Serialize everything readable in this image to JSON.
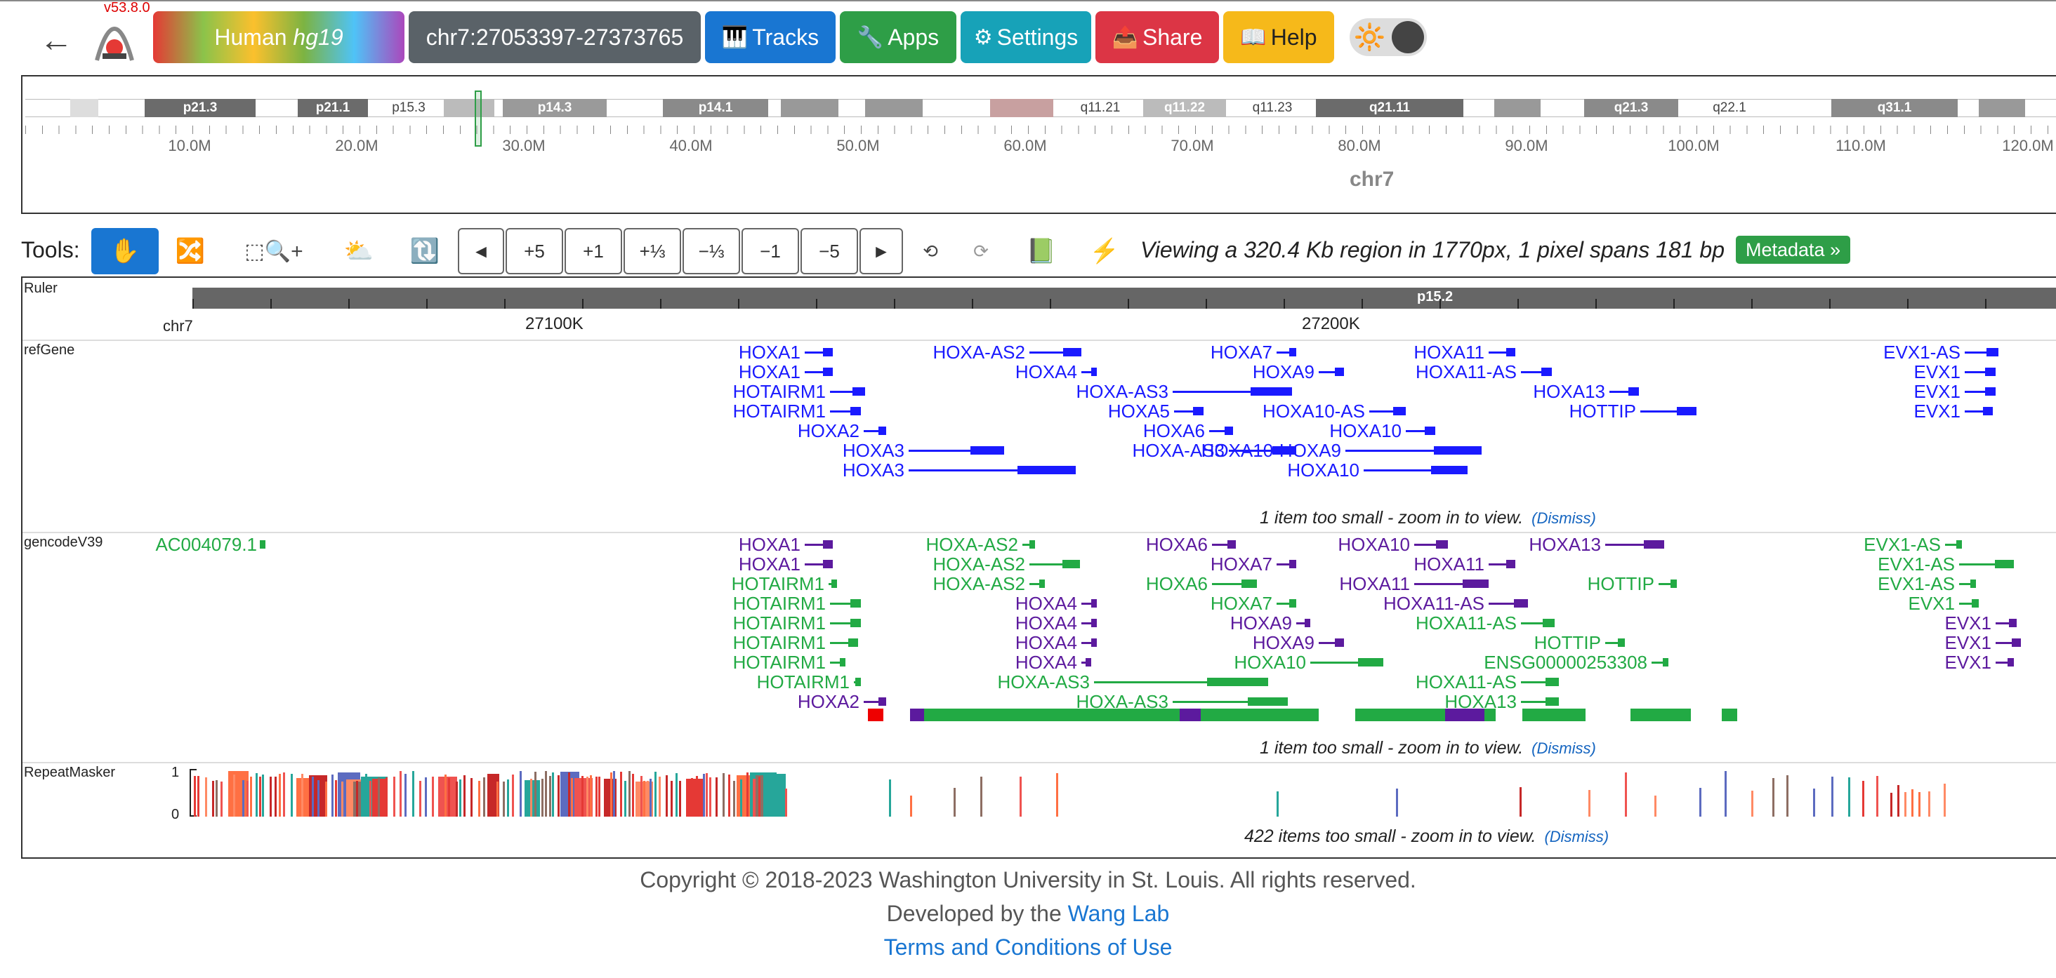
{
  "header": {
    "version": "v53.8.0",
    "genome_label": "Human",
    "genome_build": "hg19",
    "locus": "chr7:27053397-27373765",
    "buttons": {
      "tracks": "Tracks",
      "apps": "Apps",
      "settings": "Settings",
      "share": "Share",
      "help": "Help"
    }
  },
  "ideogram": {
    "chromosome": "chr7",
    "bands": [
      "p21.3",
      "p21.1",
      "p15.3",
      "p14.3",
      "p14.1",
      "q11.21",
      "q11.22",
      "q11.23",
      "q21.11",
      "q21.3",
      "q22.1",
      "q31.1"
    ],
    "ticks": [
      "10.0M",
      "20.0M",
      "30.0M",
      "40.0M",
      "50.0M",
      "60.0M",
      "70.0M",
      "80.0M",
      "90.0M",
      "100.0M",
      "110.0M",
      "120.0M"
    ]
  },
  "tools": {
    "label": "Tools:",
    "zoom_buttons": [
      "◄",
      "+5",
      "+1",
      "+⅓",
      "−⅓",
      "−1",
      "−5",
      "►"
    ],
    "status": "Viewing a 320.4 Kb region in 1770px, 1 pixel spans 181 bp",
    "metadata_button": "Metadata »"
  },
  "ruler": {
    "track_name": "Ruler",
    "chrom": "chr7",
    "labels": [
      "27100K",
      "27200K"
    ],
    "band": "p15.2"
  },
  "refGene": {
    "track_name": "refGene",
    "color": "#1a1aff",
    "genes": [
      "HOXA1",
      "HOXA1",
      "HOTAIRM1",
      "HOTAIRM1",
      "HOXA2",
      "HOXA3",
      "HOXA3",
      "HOXA-AS2",
      "HOXA4",
      "HOXA-AS3",
      "HOXA5",
      "HOXA6",
      "HOXA-AS3",
      "HOXA7",
      "HOXA9",
      "HOXA10-AS",
      "HOXA10",
      "HOXA10-HOXA9",
      "HOXA10",
      "HOXA11",
      "HOXA11-AS",
      "HOXA13",
      "HOTTIP",
      "EVX1-AS",
      "EVX1",
      "EVX1",
      "EVX1"
    ],
    "message": "1 item too small - zoom in to view.",
    "dismiss": "(Dismiss)"
  },
  "gencode": {
    "track_name": "gencodeV39",
    "coding_color": "#5c1a9e",
    "noncoding_color": "#22aa44",
    "genes": [
      "AC004079.1",
      "HOXA1",
      "HOXA1",
      "HOTAIRM1",
      "HOTAIRM1",
      "HOTAIRM1",
      "HOTAIRM1",
      "HOTAIRM1",
      "HOTAIRM1",
      "HOXA2",
      "HOXA-AS2",
      "HOXA-AS2",
      "HOXA-AS2",
      "HOXA4",
      "HOXA4",
      "HOXA4",
      "HOXA4",
      "HOXA-AS3",
      "HOXA-AS3",
      "HOXA6",
      "HOXA6",
      "HOXA7",
      "HOXA7",
      "HOXA9",
      "HOXA9",
      "HOXA10",
      "HOXA10",
      "HOXA11",
      "HOXA11",
      "HOXA11-AS",
      "HOXA11-AS",
      "HOXA11-AS",
      "HOXA13",
      "HOXA13",
      "HOTTIP",
      "HOTTIP",
      "ENSG00000253308",
      "EVX1-AS",
      "EVX1-AS",
      "EVX1-AS",
      "EVX1",
      "EVX1",
      "EVX1",
      "EVX1"
    ],
    "message": "1 item too small - zoom in to view.",
    "dismiss": "(Dismiss)"
  },
  "repeatmasker": {
    "track_name": "RepeatMasker",
    "axis_max": "1",
    "axis_min": "0",
    "message": "422 items too small - zoom in to view.",
    "dismiss": "(Dismiss)"
  },
  "footer": {
    "copyright": "Copyright © 2018-2023 Washington University in St. Louis. All rights reserved.",
    "developed_prefix": "Developed by the",
    "developed_link": "Wang Lab",
    "terms": "Terms and Conditions of Use"
  }
}
